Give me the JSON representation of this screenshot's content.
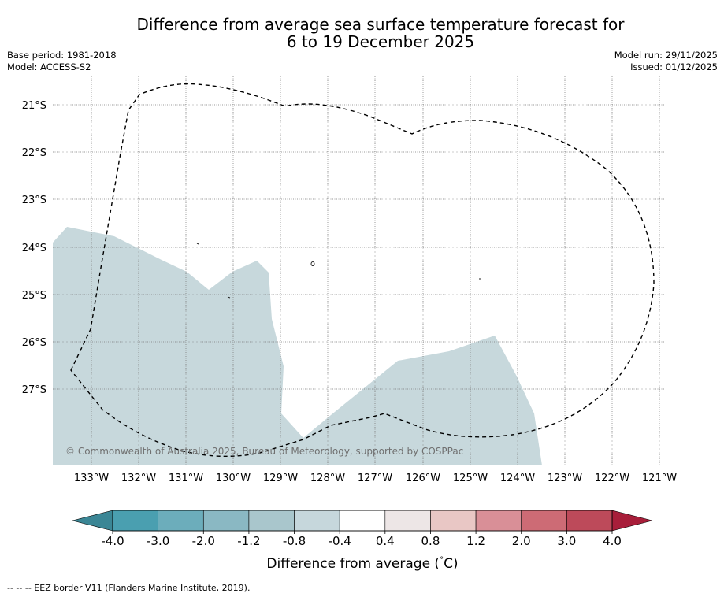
{
  "title": {
    "line1": "Difference from average sea surface temperature forecast for",
    "line2": "6 to 19 December 2025"
  },
  "meta_left": {
    "base_period": "Base period: 1981-2018",
    "model": "Model: ACCESS-S2"
  },
  "meta_right": {
    "model_run": "Model run: 29/11/2025",
    "issued": "Issued: 01/12/2025"
  },
  "map": {
    "lat_labels": [
      "21°S",
      "22°S",
      "23°S",
      "24°S",
      "25°S",
      "26°S",
      "27°S"
    ],
    "lon_labels": [
      "133°W",
      "132°W",
      "131°W",
      "130°W",
      "129°W",
      "128°W",
      "127°W",
      "126°W",
      "125°W",
      "124°W",
      "123°W",
      "122°W",
      "121°W"
    ],
    "copyright": "© Commonwealth of Australia 2025, Bureau of Meteorology, supported by COSPPac",
    "anomaly_color": "#c7d8dc"
  },
  "colorbar": {
    "tick_labels": [
      "-4.0",
      "-3.0",
      "-2.0",
      "-1.2",
      "-0.8",
      "-0.4",
      "0.4",
      "0.8",
      "1.2",
      "2.0",
      "3.0",
      "4.0"
    ],
    "colors": [
      "#4a9fb0",
      "#6cadbb",
      "#8ab8c3",
      "#a9c6cc",
      "#c6d7dc",
      "#ffffff",
      "#ede6e6",
      "#e9c7c5",
      "#d98f97",
      "#cd6b75",
      "#bd4a5a"
    ],
    "under_color": "#3b8695",
    "over_color": "#a81e3a",
    "label": "Difference from average (",
    "unit_symbol": "°",
    "unit": "C)"
  },
  "footnote": "--  --  -- EEZ border V11 (Flanders Marine Institute, 2019)."
}
